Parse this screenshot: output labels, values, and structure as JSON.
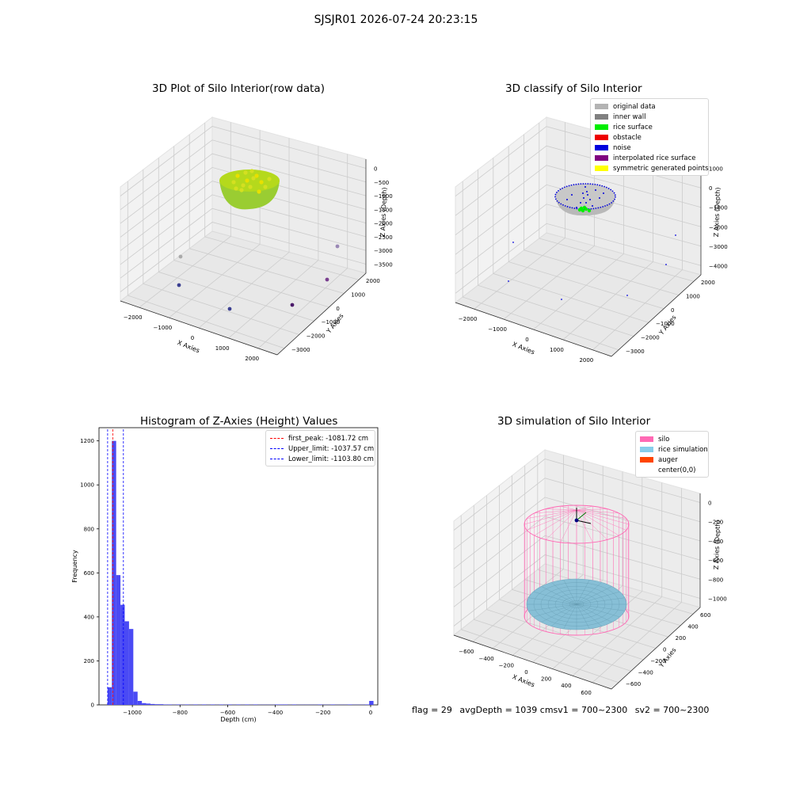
{
  "figure": {
    "suptitle": "SJSJR01 2026-07-24 20:23:15"
  },
  "panels": {
    "raw": {
      "title": "3D Plot of Silo Interior(row data)",
      "xlabel": "X Axies",
      "ylabel": "Y Axies",
      "zlabel": "Z Axies (Depth)",
      "xticks": [
        "−2000",
        "−1000",
        "0",
        "1000",
        "2000"
      ],
      "yticks": [
        "−3000",
        "−2000",
        "−1000",
        "0",
        "1000",
        "2000"
      ],
      "zticks": [
        "0",
        "−500",
        "−1000",
        "−1500",
        "−2000",
        "−2500",
        "−3000",
        "−3500"
      ]
    },
    "classify": {
      "title": "3D classify of Silo Interior",
      "xlabel": "X Axies",
      "ylabel": "Y Axies",
      "zlabel": "Z Axies (Depth)",
      "xticks": [
        "−2000",
        "−1000",
        "0",
        "1000",
        "2000"
      ],
      "yticks": [
        "−3000",
        "−2000",
        "−1000",
        "0",
        "1000",
        "2000"
      ],
      "zticks": [
        "1000",
        "0",
        "−1000",
        "−2000",
        "−3000",
        "−4000"
      ],
      "legend": [
        {
          "label": "original data",
          "color": "#b3b3b3"
        },
        {
          "label": "inner wall",
          "color": "#808080"
        },
        {
          "label": "rice surface",
          "color": "#00ee00"
        },
        {
          "label": "obstacle",
          "color": "#ee0000"
        },
        {
          "label": "noise",
          "color": "#0000dd"
        },
        {
          "label": "interpolated rice surface",
          "color": "#800080"
        },
        {
          "label": "symmetric generated points",
          "color": "#ffff00"
        }
      ]
    },
    "histogram": {
      "title": "Histogram of Z-Axies (Height) Values",
      "xlabel": "Depth (cm)",
      "ylabel": "Frequency",
      "xticks": [
        "−1000",
        "−800",
        "−600",
        "−400",
        "−200",
        "0"
      ],
      "yticks": [
        "0",
        "200",
        "400",
        "600",
        "800",
        "1000",
        "1200"
      ],
      "legend": [
        {
          "label": "first_peak: -1081.72 cm",
          "color": "#ff0000"
        },
        {
          "label": "Upper_limit: -1037.57 cm",
          "color": "#0000ff"
        },
        {
          "label": "Lower_limit: -1103.80 cm",
          "color": "#0000ff"
        }
      ]
    },
    "simulation": {
      "title": "3D simulation of Silo Interior",
      "xlabel": "X Axies",
      "ylabel": "Y Axies",
      "zlabel": "Z Axies (Depth)",
      "xticks": [
        "−600",
        "−400",
        "−200",
        "0",
        "200",
        "400",
        "600"
      ],
      "yticks": [
        "−600",
        "−400",
        "−200",
        "0",
        "200",
        "400",
        "600"
      ],
      "zticks": [
        "0",
        "−200",
        "−400",
        "−600",
        "−800",
        "−1000"
      ],
      "legend": [
        {
          "label": "silo",
          "color": "#ff69b4"
        },
        {
          "label": "rice simulation",
          "color": "#87ceeb"
        },
        {
          "label": "auger",
          "color": "#ff4500"
        },
        {
          "label": "center(0,0)",
          "color": "#ffffff"
        }
      ]
    }
  },
  "footer": {
    "flag": "flag = 29",
    "avg": "avgDepth = 1039 cmsv1 = 700~2300",
    "sv2": "sv2 = 700~2300"
  },
  "chart_data": [
    {
      "type": "scatter",
      "title": "3D Plot of Silo Interior(row data)",
      "xlabel": "X Axies",
      "ylabel": "Y Axies",
      "zlabel": "Z Axies (Depth)",
      "xlim": [
        -2600,
        2600
      ],
      "ylim": [
        -3300,
        2600
      ],
      "zlim": [
        -3700,
        100
      ],
      "grid": true
    },
    {
      "type": "scatter",
      "title": "3D classify of Silo Interior",
      "xlabel": "X Axies",
      "ylabel": "Y Axies",
      "zlabel": "Z Axies (Depth)",
      "xlim": [
        -2600,
        2600
      ],
      "ylim": [
        -3300,
        2600
      ],
      "zlim": [
        -4600,
        1300
      ],
      "legend_position": "top-right",
      "grid": true
    },
    {
      "type": "bar",
      "title": "Histogram of Z-Axies (Height) Values",
      "xlabel": "Depth (cm)",
      "ylabel": "Frequency",
      "xlim": [
        -1140,
        30
      ],
      "ylim": [
        0,
        1260
      ],
      "bin_width": 18,
      "bins": [
        [
          -1104,
          80
        ],
        [
          -1086,
          1200
        ],
        [
          -1068,
          590
        ],
        [
          -1050,
          455
        ],
        [
          -1032,
          380
        ],
        [
          -1014,
          345
        ],
        [
          -996,
          60
        ],
        [
          -978,
          18
        ],
        [
          -960,
          8
        ],
        [
          -942,
          6
        ],
        [
          -924,
          4
        ],
        [
          -906,
          3
        ],
        [
          -888,
          3
        ],
        [
          -870,
          2
        ],
        [
          -852,
          2
        ],
        [
          -834,
          1
        ],
        [
          -816,
          2
        ],
        [
          -798,
          1
        ],
        [
          -780,
          2
        ],
        [
          -762,
          1
        ],
        [
          -744,
          2
        ],
        [
          -726,
          1
        ],
        [
          -708,
          2
        ],
        [
          -690,
          1
        ],
        [
          -672,
          2
        ],
        [
          -654,
          1
        ],
        [
          -636,
          2
        ],
        [
          -618,
          1
        ],
        [
          -600,
          2
        ],
        [
          -582,
          1
        ],
        [
          -564,
          2
        ],
        [
          -546,
          1
        ],
        [
          -528,
          2
        ],
        [
          -510,
          1
        ],
        [
          -492,
          2
        ],
        [
          -474,
          1
        ],
        [
          -456,
          1
        ],
        [
          -438,
          1
        ],
        [
          -420,
          1
        ],
        [
          -402,
          2
        ],
        [
          -384,
          2
        ],
        [
          -366,
          2
        ],
        [
          -348,
          1
        ],
        [
          -330,
          2
        ],
        [
          -312,
          1
        ],
        [
          -294,
          1
        ],
        [
          -276,
          1
        ],
        [
          -258,
          1
        ],
        [
          -240,
          1
        ],
        [
          -222,
          2
        ],
        [
          -204,
          1
        ],
        [
          -186,
          1
        ],
        [
          -168,
          2
        ],
        [
          -150,
          1
        ],
        [
          -132,
          1
        ],
        [
          -114,
          1
        ],
        [
          -96,
          2
        ],
        [
          -78,
          1
        ],
        [
          -60,
          1
        ],
        [
          -42,
          1
        ],
        [
          -24,
          2
        ],
        [
          -6,
          18
        ]
      ],
      "lines": [
        {
          "label": "first_peak: -1081.72 cm",
          "x": -1081.72,
          "color": "#ff0000"
        },
        {
          "label": "Upper_limit: -1037.57 cm",
          "x": -1037.57,
          "color": "#0000ff"
        },
        {
          "label": "Lower_limit: -1103.80 cm",
          "x": -1103.8,
          "color": "#0000ff"
        }
      ],
      "legend_position": "top-right"
    },
    {
      "type": "scatter",
      "title": "3D simulation of Silo Interior",
      "xlabel": "X Axies",
      "ylabel": "Y Axies",
      "zlabel": "Z Axies (Depth)",
      "xlim": [
        -700,
        700
      ],
      "ylim": [
        -700,
        700
      ],
      "zlim": [
        -1150,
        150
      ],
      "legend_position": "top-right",
      "grid": true
    }
  ]
}
